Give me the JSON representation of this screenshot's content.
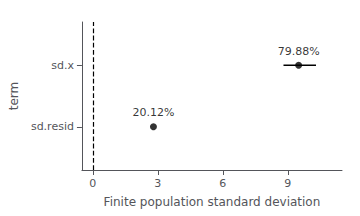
{
  "chart_data": {
    "type": "scatter",
    "xlabel": "Finite population standard deviation",
    "ylabel": "term",
    "xlim": [
      -0.5,
      11.5
    ],
    "xticks": [
      0,
      3,
      6,
      9
    ],
    "ylim": [
      0.3,
      2.7
    ],
    "yticks": [
      {
        "value": 1.0,
        "label": "sd.resid"
      },
      {
        "value": 2.0,
        "label": "sd.x"
      }
    ],
    "x": [
      9.5,
      2.8
    ],
    "values": [
      2.0,
      1.0
    ],
    "annotations": [
      "79.88%",
      "20.12%"
    ],
    "ci_low": [
      8.8,
      null
    ],
    "ci_high": [
      10.3,
      null
    ],
    "color": "#000000",
    "reference_line": {
      "x": 0,
      "line_style": "dashed"
    },
    "grid": false
  }
}
